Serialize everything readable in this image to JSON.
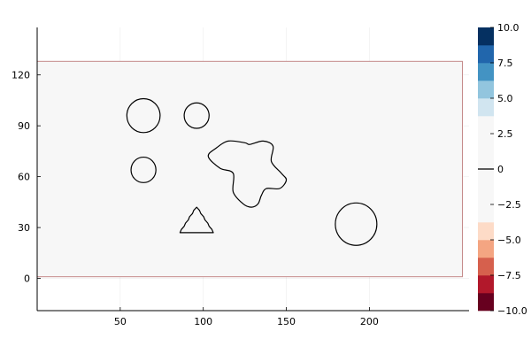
{
  "chart_data": {
    "type": "heatmap",
    "title": "",
    "xlabel": "",
    "ylabel": "",
    "xlim": [
      0,
      260
    ],
    "ylim": [
      -19,
      148
    ],
    "x_ticks": [
      50,
      100,
      150,
      200
    ],
    "y_ticks": [
      0,
      30,
      60,
      90,
      120
    ],
    "grid": true,
    "domain": {
      "x": [
        0,
        256
      ],
      "y": [
        1,
        128
      ],
      "fill": "#f7f7f7",
      "border": "#c48a8a"
    },
    "colorbar": {
      "position": "right",
      "min": -10.0,
      "max": 10.0,
      "levels": [
        -10.0,
        -8.75,
        -7.5,
        -6.25,
        -5.0,
        -3.75,
        -2.5,
        -1.25,
        0.0,
        1.25,
        2.5,
        3.75,
        5.0,
        6.25,
        7.5,
        8.75,
        10.0
      ],
      "colors": [
        "#67001f",
        "#b2182b",
        "#d6604d",
        "#f4a582",
        "#fddbc7",
        "#f7f7f7",
        "#f7f7f7",
        "#f7f7f7",
        "#f7f7f7",
        "#f7f7f7",
        "#f7f7f7",
        "#d1e5f0",
        "#92c5de",
        "#4393c3",
        "#2166ac",
        "#053061"
      ],
      "tick_values": [
        -10.0,
        -7.5,
        -5.0,
        -2.5,
        0.0,
        2.5,
        5.0,
        7.5,
        10.0
      ],
      "tick_labels": [
        "-10.0",
        "-7.5",
        "-5.0",
        "-2.5",
        "0",
        "2.5",
        "5.0",
        "7.5",
        "10.0"
      ]
    },
    "contours": [
      {
        "kind": "circle",
        "cx": 64,
        "cy": 96,
        "r": 10
      },
      {
        "kind": "circle",
        "cx": 96,
        "cy": 96,
        "r": 7.5
      },
      {
        "kind": "circle",
        "cx": 64,
        "cy": 64,
        "r": 7.5
      },
      {
        "kind": "circle",
        "cx": 192,
        "cy": 32,
        "r": 12.5
      },
      {
        "kind": "triangle",
        "points": [
          [
            96,
            42
          ],
          [
            106,
            27
          ],
          [
            86,
            27
          ]
        ]
      },
      {
        "kind": "blob",
        "points": [
          [
            103,
            72
          ],
          [
            108,
            77
          ],
          [
            115,
            81
          ],
          [
            125,
            80
          ],
          [
            128,
            79
          ],
          [
            136,
            81
          ],
          [
            142,
            78
          ],
          [
            141,
            69
          ],
          [
            147,
            62
          ],
          [
            150,
            58
          ],
          [
            146,
            53
          ],
          [
            138,
            53
          ],
          [
            135,
            49
          ],
          [
            133,
            44
          ],
          [
            129,
            42
          ],
          [
            124,
            44
          ],
          [
            118,
            51
          ],
          [
            118,
            62
          ],
          [
            110,
            65
          ]
        ]
      }
    ]
  }
}
